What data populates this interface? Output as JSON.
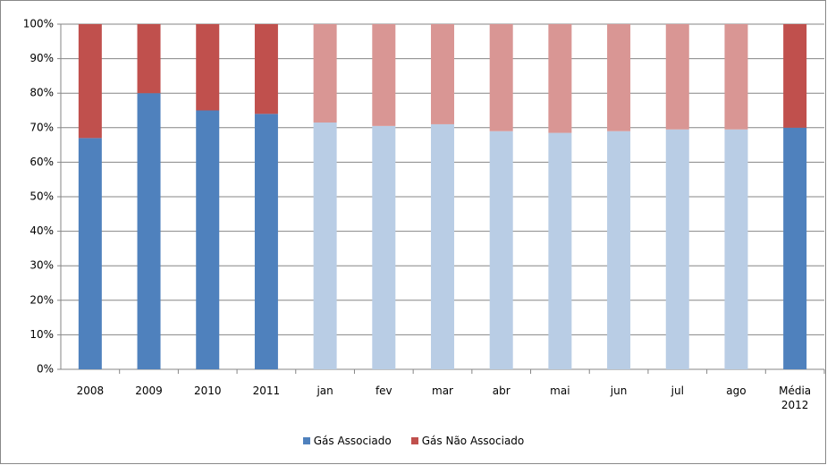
{
  "chart_data": {
    "type": "stacked-bar-percent",
    "categories": [
      "2008",
      "2009",
      "2010",
      "2011",
      "jan",
      "fev",
      "mar",
      "abr",
      "mai",
      "jun",
      "jul",
      "ago",
      "Média 2012"
    ],
    "series": [
      {
        "name": "Gás Associado",
        "color": "#4f81bd",
        "colors": [
          "#4f81bd",
          "#4f81bd",
          "#4f81bd",
          "#4f81bd",
          "#b9cde5",
          "#b9cde5",
          "#b9cde5",
          "#b9cde5",
          "#b9cde5",
          "#b9cde5",
          "#b9cde5",
          "#b9cde5",
          "#4f81bd"
        ],
        "values": [
          67,
          80,
          75,
          74,
          71.5,
          70.5,
          71,
          69,
          68.5,
          69,
          69.5,
          69.5,
          70
        ]
      },
      {
        "name": "Gás Não Associado",
        "color": "#c0504d",
        "colors": [
          "#c0504d",
          "#c0504d",
          "#c0504d",
          "#c0504d",
          "#d99694",
          "#d99694",
          "#d99694",
          "#d99694",
          "#d99694",
          "#d99694",
          "#d99694",
          "#d99694",
          "#c0504d"
        ],
        "values": [
          33,
          20,
          25,
          26,
          28.5,
          29.5,
          29,
          31,
          31.5,
          31,
          30.5,
          30.5,
          30
        ]
      }
    ],
    "ylim": [
      0,
      100
    ],
    "yticks": [
      {
        "value": 0,
        "label": "0%"
      },
      {
        "value": 10,
        "label": "10%"
      },
      {
        "value": 20,
        "label": "20%"
      },
      {
        "value": 30,
        "label": "30%"
      },
      {
        "value": 40,
        "label": "40%"
      },
      {
        "value": 50,
        "label": "50%"
      },
      {
        "value": 60,
        "label": "60%"
      },
      {
        "value": 70,
        "label": "70%"
      },
      {
        "value": 80,
        "label": "80%"
      },
      {
        "value": 90,
        "label": "90%"
      },
      {
        "value": 100,
        "label": "100%"
      }
    ],
    "grid": true,
    "legend": "bottom"
  }
}
